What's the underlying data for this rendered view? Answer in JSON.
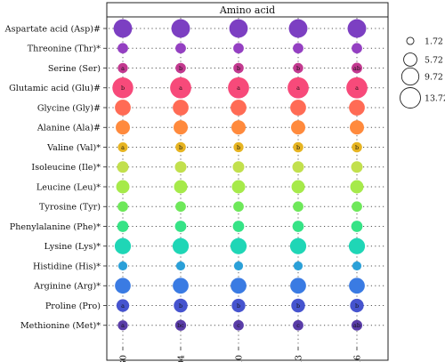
{
  "chart_data": {
    "type": "scatter",
    "title": "Amino acid",
    "columns": [
      "G0",
      "G004",
      "G010",
      "G013",
      "G016"
    ],
    "rows": [
      {
        "label": "Aspartate acid (Asp)#",
        "color": "#7c3fc2",
        "values": [
          11.2,
          11.3,
          11.2,
          11.3,
          11.3
        ],
        "letters": [
          "",
          "",
          "",
          "",
          ""
        ]
      },
      {
        "label": "Threonine (Thr)*",
        "color": "#9440c2",
        "values": [
          3.6,
          3.6,
          3.6,
          3.6,
          3.6
        ],
        "letters": [
          "",
          "",
          "",
          "",
          ""
        ]
      },
      {
        "label": "Serine (Ser)",
        "color": "#c2398f",
        "values": [
          3.3,
          3.5,
          3.5,
          3.4,
          3.7
        ],
        "letters": [
          "a",
          "b",
          "b",
          "b",
          "ab"
        ]
      },
      {
        "label": "Glutamic acid (Glu)#",
        "color": "#f74a7a",
        "values": [
          14.2,
          14.6,
          14.6,
          14.6,
          14.6
        ],
        "letters": [
          "b",
          "a",
          "a",
          "a",
          "a"
        ]
      },
      {
        "label": "Glycine (Gly)#",
        "color": "#ff6b55",
        "values": [
          8.2,
          8.2,
          8.2,
          8.2,
          8.2
        ],
        "letters": [
          "",
          "",
          "",
          "",
          ""
        ]
      },
      {
        "label": "Alanine (Ala)#",
        "color": "#ff8a3d",
        "values": [
          6.6,
          6.6,
          6.6,
          6.6,
          6.6
        ],
        "letters": [
          "",
          "",
          "",
          "",
          ""
        ]
      },
      {
        "label": "Valine (Val)*",
        "color": "#e6b422",
        "values": [
          3.2,
          3.5,
          3.3,
          3.5,
          3.5
        ],
        "letters": [
          "a",
          "b",
          "b",
          "b",
          "b"
        ]
      },
      {
        "label": "Isoleucine (Ile)*",
        "color": "#c2e04d",
        "values": [
          4.4,
          4.4,
          4.4,
          4.4,
          4.4
        ],
        "letters": [
          "",
          "",
          "",
          "",
          ""
        ]
      },
      {
        "label": "Leucine (Leu)*",
        "color": "#a6ea4a",
        "values": [
          5.8,
          5.8,
          5.8,
          5.8,
          5.8
        ],
        "letters": [
          "",
          "",
          "",
          "",
          ""
        ]
      },
      {
        "label": "Tyrosine (Tyr)",
        "color": "#6ee85a",
        "values": [
          3.6,
          3.6,
          3.6,
          3.6,
          3.6
        ],
        "letters": [
          "",
          "",
          "",
          "",
          ""
        ]
      },
      {
        "label": "Phenylalanine (Phe)*",
        "color": "#36e386",
        "values": [
          4.2,
          4.2,
          4.2,
          4.2,
          4.2
        ],
        "letters": [
          "",
          "",
          "",
          "",
          ""
        ]
      },
      {
        "label": "Lysine (Lys)*",
        "color": "#1fd6b6",
        "values": [
          8.6,
          8.6,
          8.6,
          8.6,
          8.6
        ],
        "letters": [
          "",
          "",
          "",
          "",
          ""
        ]
      },
      {
        "label": "Histidine (His)*",
        "color": "#2ba0d8",
        "values": [
          2.7,
          2.7,
          2.7,
          2.7,
          2.7
        ],
        "letters": [
          "",
          "",
          "",
          "",
          ""
        ]
      },
      {
        "label": "Arginine (Arg)*",
        "color": "#3a7be3",
        "values": [
          8.1,
          8.2,
          8.2,
          8.2,
          8.2
        ],
        "letters": [
          "",
          "",
          "",
          "",
          ""
        ]
      },
      {
        "label": "Proline (Pro)",
        "color": "#4654cf",
        "values": [
          5.3,
          6.2,
          6.1,
          6.2,
          6.1
        ],
        "letters": [
          "a",
          "b",
          "b",
          "b",
          "b"
        ]
      },
      {
        "label": "Methionine (Met)*",
        "color": "#5a3da8",
        "values": [
          3.3,
          3.9,
          3.6,
          3.6,
          3.8
        ],
        "letters": [
          "a",
          "bc",
          "c",
          "c",
          "ab"
        ]
      }
    ],
    "legend": {
      "position": "right",
      "items": [
        {
          "label": "1.72",
          "value": 1.72
        },
        {
          "label": "5.72",
          "value": 5.72
        },
        {
          "label": "9.72",
          "value": 9.72
        },
        {
          "label": "13.72",
          "value": 13.72
        }
      ]
    },
    "grid": "dotted"
  }
}
